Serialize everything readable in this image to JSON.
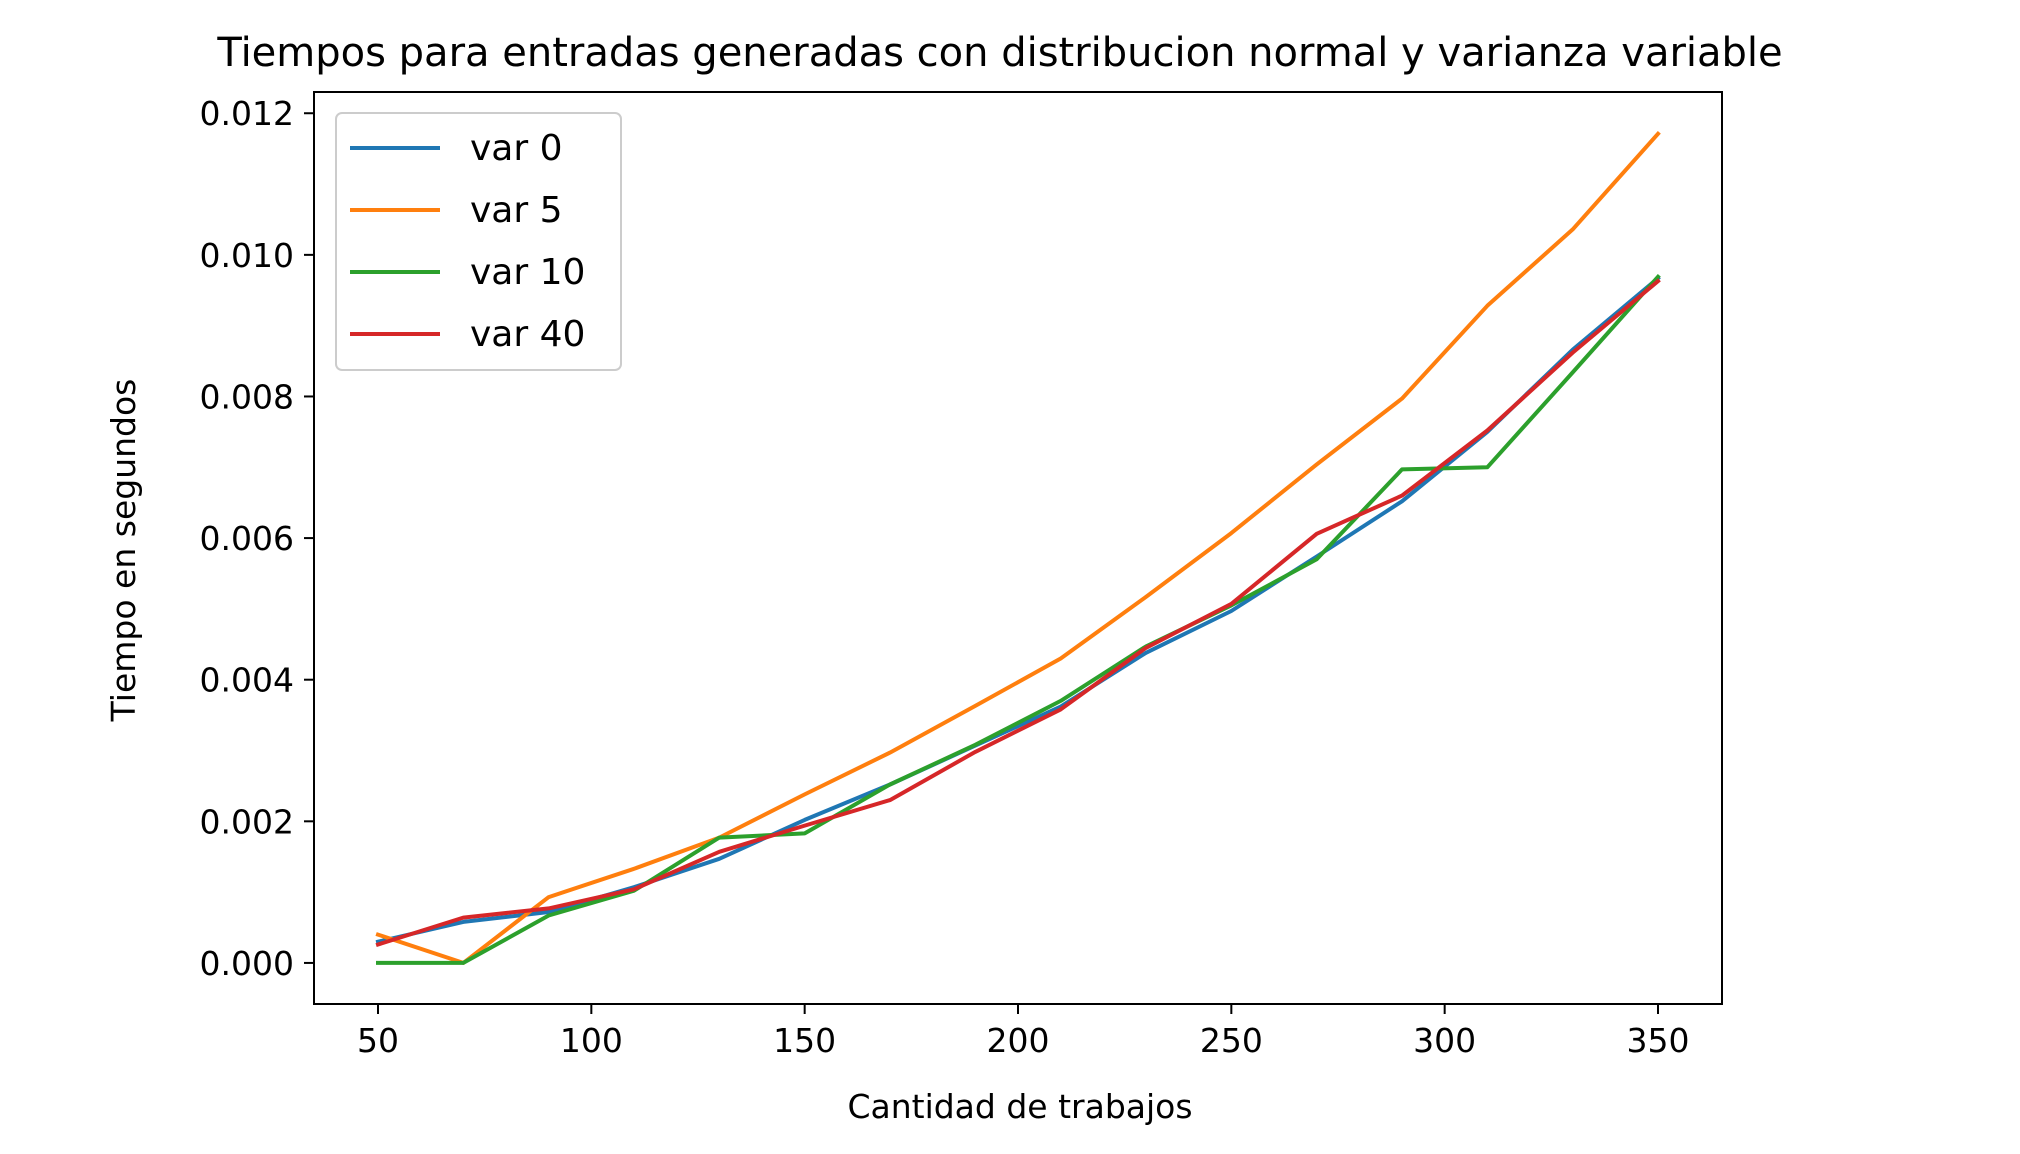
{
  "chart_data": {
    "type": "line",
    "title": "Tiempos para entradas generadas con distribucion normal y varianza variable",
    "xlabel": "Cantidad de trabajos",
    "ylabel": "Tiempo en segundos",
    "xlim": [
      35,
      365
    ],
    "ylim": [
      -0.00058,
      0.0123
    ],
    "xticks": [
      50,
      100,
      150,
      200,
      250,
      300,
      350
    ],
    "xtick_labels": [
      "50",
      "100",
      "150",
      "200",
      "250",
      "300",
      "350"
    ],
    "yticks": [
      0.0,
      0.002,
      0.004,
      0.006,
      0.008,
      0.01,
      0.012
    ],
    "ytick_labels": [
      "0.000",
      "0.002",
      "0.004",
      "0.006",
      "0.008",
      "0.010",
      "0.012"
    ],
    "grid": false,
    "legend_position": "top-left",
    "x": [
      50,
      70,
      90,
      110,
      130,
      150,
      170,
      190,
      210,
      230,
      250,
      270,
      290,
      310,
      330,
      350
    ],
    "series": [
      {
        "name": "var 0",
        "color": "#1f77b4",
        "values": [
          0.0003,
          0.00058,
          0.00072,
          0.00107,
          0.00147,
          0.00202,
          0.00252,
          0.00307,
          0.00362,
          0.00438,
          0.00497,
          0.00574,
          0.00652,
          0.0075,
          0.00866,
          0.00967
        ]
      },
      {
        "name": "var 5",
        "color": "#ff7f0e",
        "values": [
          0.0004,
          0.0,
          0.00093,
          0.00133,
          0.00177,
          0.00238,
          0.00297,
          0.00363,
          0.0043,
          0.00517,
          0.00607,
          0.00704,
          0.00797,
          0.00928,
          0.01036,
          0.01171
        ]
      },
      {
        "name": "var 10",
        "color": "#2ca02c",
        "values": [
          0.0,
          0.0,
          0.00067,
          0.00102,
          0.00177,
          0.00183,
          0.00252,
          0.00308,
          0.0037,
          0.00447,
          0.00505,
          0.0057,
          0.00697,
          0.007,
          0.00834,
          0.00969
        ]
      },
      {
        "name": "var 40",
        "color": "#d62728",
        "values": [
          0.00026,
          0.00064,
          0.00077,
          0.00104,
          0.00157,
          0.00194,
          0.0023,
          0.00298,
          0.00358,
          0.00445,
          0.00507,
          0.00606,
          0.0066,
          0.00752,
          0.00862,
          0.00963
        ]
      }
    ]
  }
}
